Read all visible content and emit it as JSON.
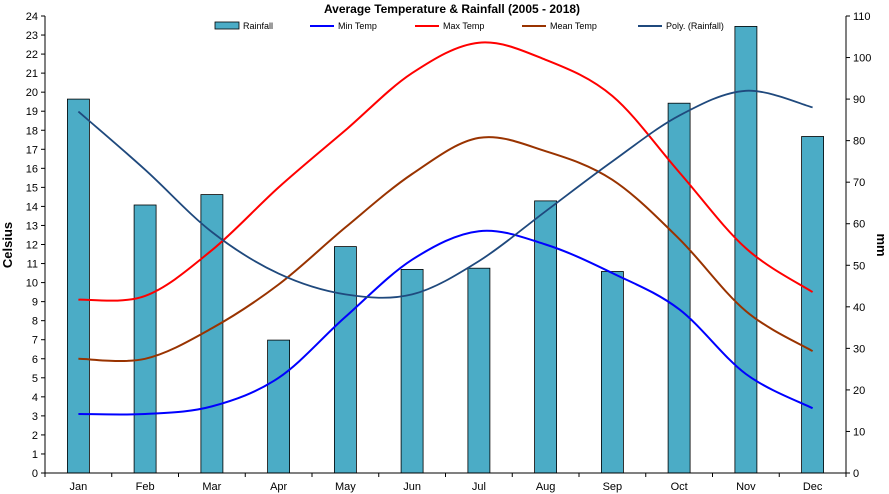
{
  "chart_data": {
    "type": "bar",
    "title": "Average Temperature & Rainfall (2005 - 2018)",
    "categories": [
      "Jan",
      "Feb",
      "Mar",
      "Apr",
      "May",
      "Jun",
      "Jul",
      "Aug",
      "Sep",
      "Oct",
      "Nov",
      "Dec"
    ],
    "ylabel": "Celsius",
    "ylim": [
      0,
      24
    ],
    "yticks": [
      0,
      1,
      2,
      3,
      4,
      5,
      6,
      7,
      8,
      9,
      10,
      11,
      12,
      13,
      14,
      15,
      16,
      17,
      18,
      19,
      20,
      21,
      22,
      23,
      24
    ],
    "y2label": "mm",
    "y2lim": [
      0,
      110
    ],
    "y2ticks": [
      0,
      10,
      20,
      30,
      40,
      50,
      60,
      70,
      80,
      90,
      100,
      110
    ],
    "legend_position": "top",
    "grid": false,
    "series": [
      {
        "name": "Rainfall",
        "type": "bar",
        "axis": "right",
        "color": "#4bacc6",
        "values": [
          90,
          64.5,
          67,
          32,
          54.5,
          49,
          49.3,
          65.5,
          48.5,
          89,
          107.5,
          81
        ]
      },
      {
        "name": "Min Temp",
        "type": "line",
        "axis": "left",
        "color": "#0000ff",
        "values": [
          3.1,
          3.1,
          3.5,
          5.0,
          8.2,
          11.2,
          12.7,
          12.0,
          10.5,
          8.6,
          5.2,
          3.4
        ]
      },
      {
        "name": "Max Temp",
        "type": "line",
        "axis": "left",
        "color": "#ff0000",
        "values": [
          9.1,
          9.3,
          11.7,
          15.0,
          18.0,
          21.0,
          22.6,
          21.7,
          19.8,
          15.8,
          11.8,
          9.5
        ]
      },
      {
        "name": "Mean Temp",
        "type": "line",
        "axis": "left",
        "color": "#993300",
        "values": [
          6.0,
          6.0,
          7.6,
          9.9,
          12.9,
          15.7,
          17.6,
          16.9,
          15.4,
          12.3,
          8.5,
          6.4
        ]
      },
      {
        "name": "Poly. (Rainfall)",
        "type": "line",
        "axis": "right",
        "color": "#1f497d",
        "values": [
          87,
          73,
          58,
          48,
          43,
          43,
          51,
          63,
          75,
          86,
          92,
          88
        ]
      }
    ]
  }
}
